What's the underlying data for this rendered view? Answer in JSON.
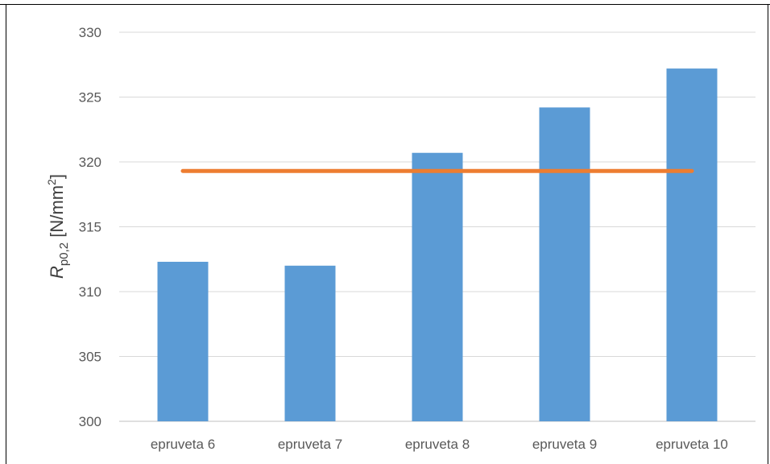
{
  "chart_data": {
    "type": "bar",
    "title": "",
    "xlabel": "",
    "ylabel": {
      "symbol": "R",
      "subscript": "p0,2",
      "unit_prefix": " [N/mm",
      "unit_power": "2",
      "unit_suffix": "]"
    },
    "categories": [
      "epruveta 6",
      "epruveta 7",
      "epruveta 8",
      "epruveta 9",
      "epruveta 10"
    ],
    "series": [
      {
        "type": "bar",
        "color": "#5B9BD5",
        "values": [
          312.3,
          312.0,
          320.7,
          324.2,
          327.2
        ]
      },
      {
        "type": "line",
        "color": "#ED7D31",
        "values": [
          319.3,
          319.3,
          319.3,
          319.3,
          319.3
        ]
      }
    ],
    "ylim": [
      300,
      330
    ],
    "yticks": [
      "300",
      "305",
      "310",
      "315",
      "320",
      "325",
      "330"
    ],
    "grid": true,
    "legend": "none"
  }
}
